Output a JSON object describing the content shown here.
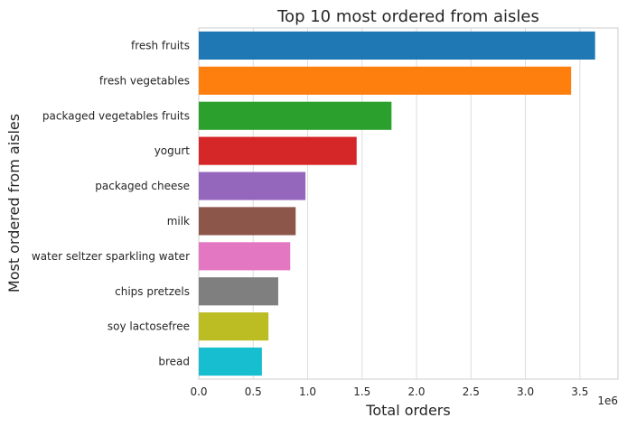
{
  "chart_data": {
    "type": "bar",
    "orientation": "horizontal",
    "title": "Top 10 most ordered from aisles",
    "xlabel": "Total orders",
    "ylabel": "Most ordered from aisles",
    "x_scale_label": "1e6",
    "xlim": [
      0,
      3.85
    ],
    "x_ticks": [
      "0.0",
      "0.5",
      "1.0",
      "1.5",
      "2.0",
      "2.5",
      "3.0",
      "3.5"
    ],
    "grid": true,
    "categories": [
      "fresh fruits",
      "fresh vegetables",
      "packaged vegetables fruits",
      "yogurt",
      "packaged cheese",
      "milk",
      "water seltzer sparkling water",
      "chips pretzels",
      "soy lactosefree",
      "bread"
    ],
    "values": [
      3.64,
      3.42,
      1.77,
      1.45,
      0.98,
      0.89,
      0.84,
      0.73,
      0.64,
      0.58
    ],
    "colors": [
      "#1f77b4",
      "#ff7f0e",
      "#2ca02c",
      "#d62728",
      "#9467bd",
      "#8c564b",
      "#e377c2",
      "#7f7f7f",
      "#bcbd22",
      "#17becf"
    ]
  }
}
